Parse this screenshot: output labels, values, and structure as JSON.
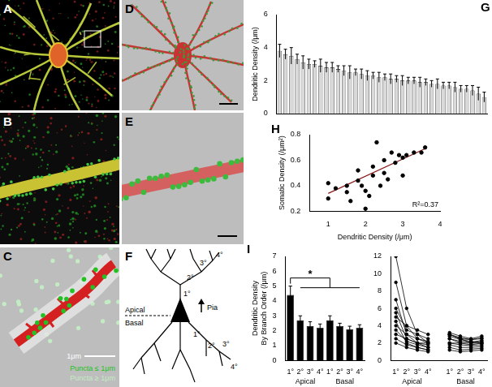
{
  "panels": [
    "A",
    "B",
    "C",
    "D",
    "E",
    "F",
    "G",
    "H",
    "I"
  ],
  "panel_C": {
    "scale": "1μm",
    "legend": [
      {
        "label": "Puncta ≤ 1μm",
        "color": "#22c222"
      },
      {
        "label": "Puncta ≥ 1μm",
        "color": "#c4ecc4"
      }
    ]
  },
  "panel_F": {
    "apical": "Apical",
    "basal": "Basal",
    "pia": "Pia",
    "apical_orders": [
      "1°",
      "2°",
      "3°",
      "4°"
    ],
    "basal_orders": [
      "1°",
      "2°",
      "3°",
      "4°"
    ]
  },
  "chart_data": [
    {
      "type": "bar",
      "ylabel": "Dendritic Density (/μm)",
      "categories": [
        null,
        null,
        null,
        null,
        null,
        null,
        null,
        null,
        null,
        null,
        null,
        null,
        null,
        null,
        null,
        null,
        null,
        null,
        null,
        null,
        null,
        null,
        null,
        null,
        null,
        null,
        null,
        null,
        null,
        null,
        null,
        null,
        null,
        null,
        null,
        null
      ],
      "values": [
        3.8,
        3.6,
        3.5,
        3.3,
        3.1,
        3.0,
        3.0,
        2.9,
        2.8,
        2.8,
        2.7,
        2.6,
        2.5,
        2.5,
        2.4,
        2.3,
        2.3,
        2.2,
        2.2,
        2.1,
        2.1,
        2.0,
        2.0,
        2.0,
        1.9,
        1.9,
        1.8,
        1.8,
        1.7,
        1.7,
        1.6,
        1.5,
        1.5,
        1.4,
        1.2,
        1.0
      ],
      "errors": [
        0.4,
        0.3,
        0.5,
        0.3,
        0.4,
        0.3,
        0.2,
        0.4,
        0.3,
        0.3,
        0.2,
        0.3,
        0.4,
        0.2,
        0.3,
        0.3,
        0.2,
        0.3,
        0.2,
        0.3,
        0.2,
        0.3,
        0.2,
        0.2,
        0.3,
        0.2,
        0.2,
        0.3,
        0.2,
        0.2,
        0.3,
        0.2,
        0.2,
        0.3,
        0.4,
        0.3
      ],
      "color": "#d9d9d9",
      "ylim": [
        0,
        6
      ],
      "yticks": [
        0,
        2,
        4,
        6
      ],
      "grid": false,
      "tick_labels": "y"
    },
    {
      "type": "scatter",
      "xlabel": "Dendritic Density (/μm)",
      "ylabel": "Somatic Density (/μm²)",
      "x": [
        1.0,
        1.0,
        1.2,
        1.5,
        1.5,
        1.6,
        1.8,
        1.8,
        1.9,
        2.0,
        2.0,
        2.1,
        2.2,
        2.2,
        2.3,
        2.4,
        2.5,
        2.5,
        2.6,
        2.7,
        2.8,
        2.9,
        3.0,
        3.0,
        3.1,
        3.3,
        3.5,
        3.6
      ],
      "values": [
        0.3,
        0.42,
        0.38,
        0.35,
        0.4,
        0.28,
        0.44,
        0.52,
        0.4,
        0.22,
        0.36,
        0.32,
        0.48,
        0.55,
        0.74,
        0.4,
        0.5,
        0.6,
        0.45,
        0.66,
        0.58,
        0.64,
        0.62,
        0.48,
        0.64,
        0.66,
        0.66,
        0.7
      ],
      "color": "#000000",
      "marker": "circle",
      "fit": {
        "x": [
          1.0,
          3.6
        ],
        "values": [
          0.34,
          0.69
        ],
        "color": "#8b1a1a"
      },
      "annotation": "R²=0.37",
      "xlim": [
        0.5,
        4
      ],
      "xticks": [
        1,
        2,
        3,
        4
      ],
      "ylim": [
        0.2,
        0.8
      ],
      "yticks": [
        0.2,
        0.4,
        0.6,
        0.8
      ],
      "grid": false
    },
    {
      "type": "bar",
      "ylabel": [
        "Dendritic Density",
        "By Branch Order (/μm)"
      ],
      "categories": [
        "1°",
        "2°",
        "3°",
        "4°",
        "1°",
        "2°",
        "3°",
        "4°"
      ],
      "groups": [
        "Apical",
        "Basal"
      ],
      "values": [
        4.4,
        2.7,
        2.3,
        2.2,
        2.7,
        2.3,
        2.1,
        2.2
      ],
      "errors": [
        0.6,
        0.3,
        0.3,
        0.25,
        0.3,
        0.2,
        0.2,
        0.2
      ],
      "color": "#000000",
      "significance": "*",
      "ylim": [
        0,
        7
      ],
      "yticks": [
        0,
        1,
        2,
        3,
        4,
        5,
        6,
        7
      ],
      "grid": false
    },
    {
      "type": "line",
      "categories": [
        "1°",
        "2°",
        "3°",
        "4°",
        null,
        "1°",
        "2°",
        "3°",
        "4°"
      ],
      "groups": [
        "Apical",
        "Basal"
      ],
      "series": [
        {
          "values": [
            12,
            6,
            3,
            2,
            null,
            3,
            2.5,
            2,
            2
          ]
        },
        {
          "values": [
            9,
            4,
            2.5,
            2,
            null,
            2.5,
            2,
            2,
            2.2
          ]
        },
        {
          "values": [
            7,
            3,
            2,
            1.5,
            null,
            3,
            2.5,
            2.4,
            2.6
          ]
        },
        {
          "values": [
            6,
            3.5,
            3,
            2.5,
            null,
            2,
            2,
            1.8,
            2
          ]
        },
        {
          "values": [
            5.5,
            2.5,
            2,
            2,
            null,
            3.2,
            2.8,
            2.5,
            2.8
          ]
        },
        {
          "values": [
            5,
            4,
            3.5,
            3,
            null,
            2.5,
            2.2,
            2.1,
            2.3
          ]
        },
        {
          "values": [
            4.5,
            2,
            1.5,
            1.2,
            null,
            1.8,
            1.5,
            1.5,
            1.6
          ]
        },
        {
          "values": [
            4,
            3,
            2.5,
            2.2,
            null,
            2.8,
            2.4,
            2.2,
            2
          ]
        },
        {
          "values": [
            3.5,
            2.2,
            1.8,
            1.5,
            null,
            2,
            1.8,
            1.7,
            1.8
          ]
        },
        {
          "values": [
            3,
            2.5,
            2,
            1.8,
            null,
            3,
            2.6,
            2.4,
            2.5
          ]
        },
        {
          "values": [
            2.5,
            1.8,
            1.5,
            1.2,
            null,
            1.5,
            1.2,
            1.3,
            1.4
          ]
        },
        {
          "values": [
            2,
            1.5,
            1.2,
            1,
            null,
            1.2,
            1,
            1.1,
            1.2
          ]
        }
      ],
      "color": "#000000",
      "marker": "circle",
      "ylim": [
        0,
        12
      ],
      "yticks": [
        0,
        2,
        4,
        6,
        8,
        10,
        12
      ],
      "grid": false
    }
  ]
}
